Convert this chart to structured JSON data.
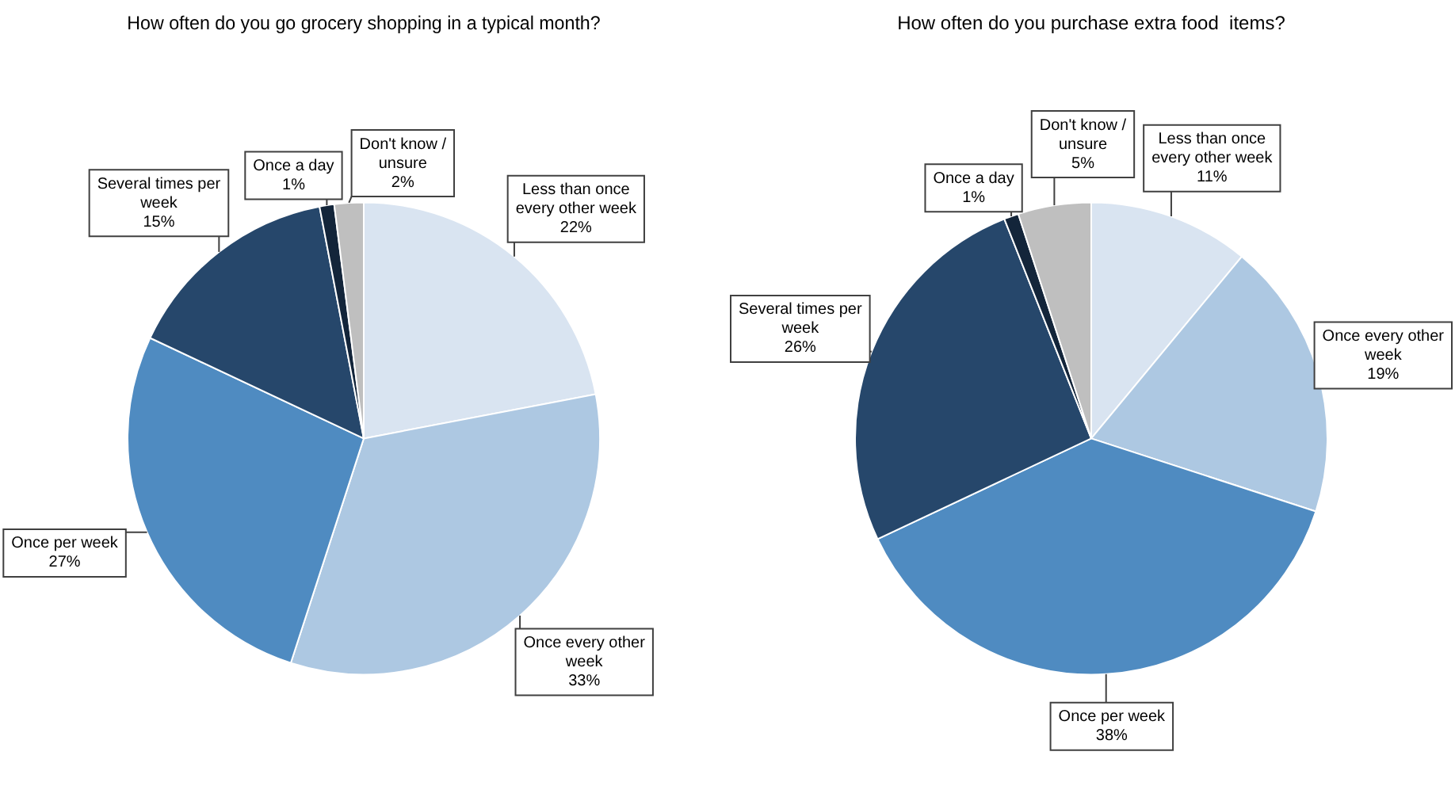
{
  "chart_data": [
    {
      "type": "pie",
      "title": "How often do you go grocery shopping in a typical month?",
      "categories": [
        "Less than once every other week",
        "Once every other week",
        "Once per week",
        "Several times per week",
        "Once a day",
        "Don't know / unsure"
      ],
      "values": [
        22,
        33,
        27,
        15,
        1,
        2
      ],
      "value_labels": [
        "22%",
        "33%",
        "27%",
        "15%",
        "1%",
        "2%"
      ],
      "colors": [
        "#d9e4f1",
        "#adc8e2",
        "#4f8bc1",
        "#26476b",
        "#13253a",
        "#bfbfbf"
      ],
      "legend": false
    },
    {
      "type": "pie",
      "title": "How often do you purchase extra food  items?",
      "categories": [
        "Less than once every other week",
        "Once every other week",
        "Once per week",
        "Several times per week",
        "Once a day",
        "Don't know / unsure"
      ],
      "values": [
        11,
        19,
        38,
        26,
        1,
        5
      ],
      "value_labels": [
        "11%",
        "19%",
        "38%",
        "26%",
        "1%",
        "5%"
      ],
      "colors": [
        "#d9e4f1",
        "#adc8e2",
        "#4f8bc1",
        "#26476b",
        "#13253a",
        "#bfbfbf"
      ],
      "legend": false
    }
  ]
}
